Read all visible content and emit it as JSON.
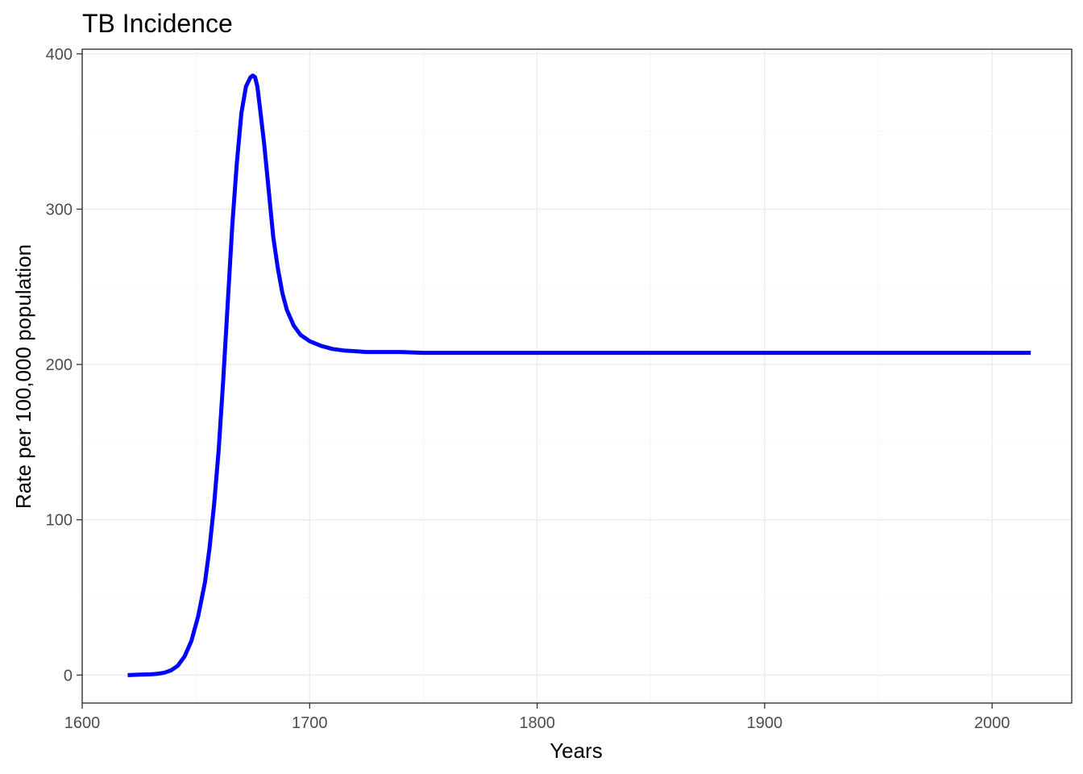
{
  "chart_data": {
    "type": "line",
    "title": "TB Incidence",
    "xlabel": "Years",
    "ylabel": "Rate per 100,000 population",
    "xlim": [
      1600,
      2035
    ],
    "ylim": [
      -18,
      403
    ],
    "x_ticks": [
      1600,
      1700,
      1800,
      1900,
      2000
    ],
    "y_ticks": [
      0,
      100,
      200,
      300,
      400
    ],
    "x_minor": [
      1650,
      1750,
      1850,
      1950
    ],
    "y_minor": [
      50,
      150,
      250,
      350
    ],
    "grid": true,
    "legend": "none",
    "series": [
      {
        "color": "#0000ff",
        "x": [
          1620,
          1625,
          1630,
          1633,
          1636,
          1639,
          1642,
          1645,
          1648,
          1651,
          1654,
          1656,
          1658,
          1660,
          1662,
          1664,
          1666,
          1668,
          1670,
          1672,
          1674,
          1675,
          1676,
          1677,
          1678,
          1680,
          1682,
          1684,
          1686,
          1688,
          1690,
          1693,
          1696,
          1700,
          1705,
          1710,
          1715,
          1720,
          1725,
          1730,
          1740,
          1750,
          1800,
          1850,
          1900,
          1950,
          2000,
          2017
        ],
        "y": [
          0,
          0.3,
          0.5,
          0.8,
          1.5,
          3,
          6,
          12,
          22,
          38,
          60,
          82,
          110,
          145,
          190,
          240,
          290,
          330,
          362,
          379,
          385,
          386,
          385,
          379,
          367,
          342,
          312,
          282,
          262,
          246,
          235,
          225,
          219,
          215,
          212,
          210,
          209,
          208.5,
          208,
          208,
          208,
          207.5,
          207.5,
          207.5,
          207.5,
          207.5,
          207.5,
          207.5
        ]
      }
    ]
  }
}
